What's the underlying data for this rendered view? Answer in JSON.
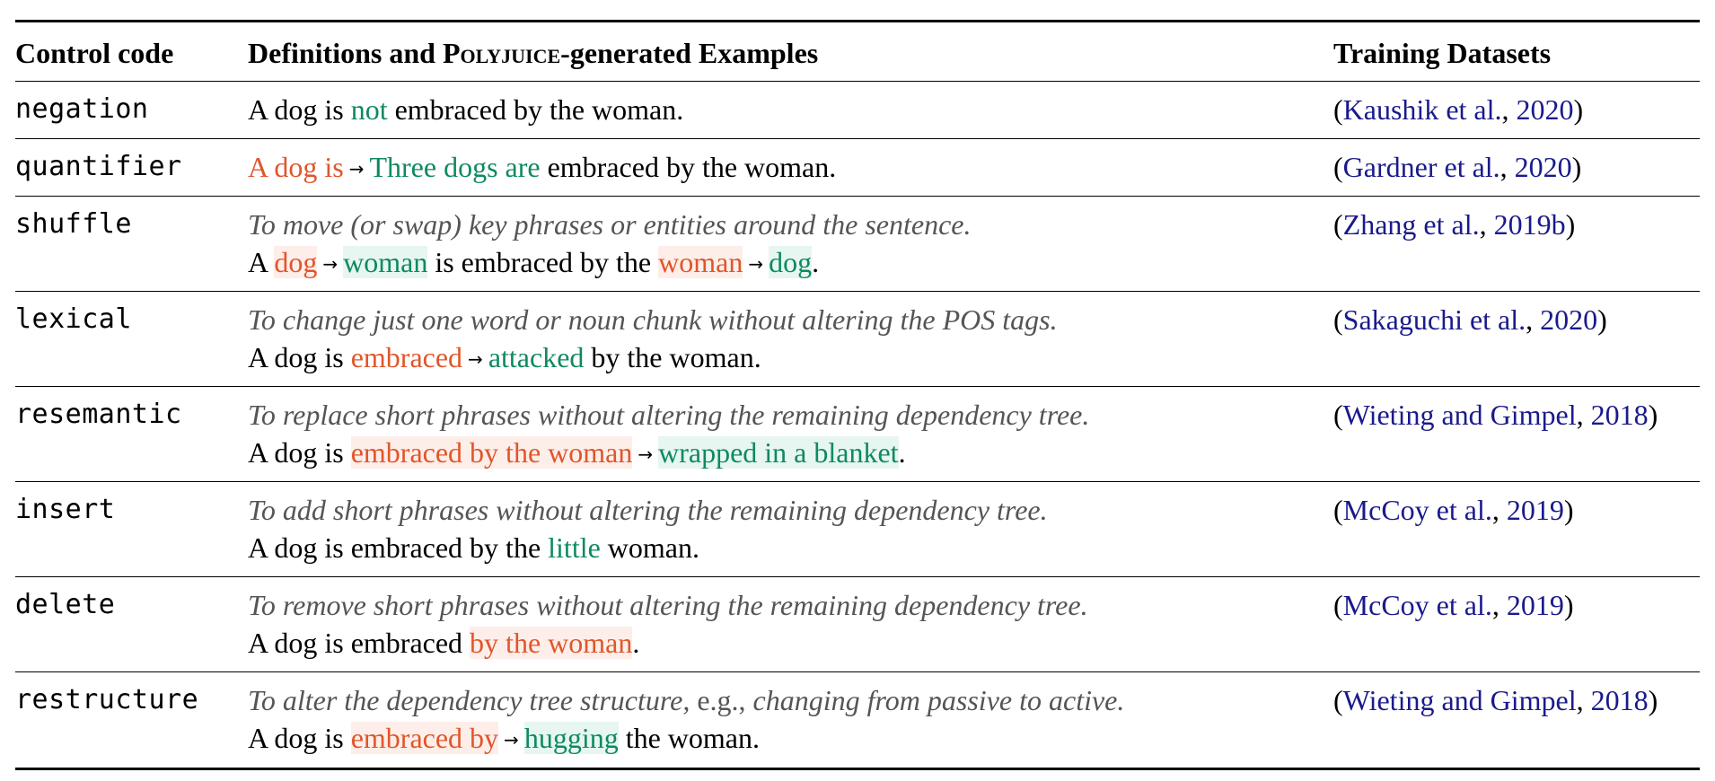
{
  "header": {
    "col1": "Control code",
    "col2_pre": "Definitions and ",
    "col2_brand": "Polyjuice",
    "col2_post": "-generated Examples",
    "col3": "Training Datasets"
  },
  "colors": {
    "deleted": "#e0562a",
    "inserted": "#0e8a5f",
    "definition": "#555555",
    "citation_link": "#1a1a8c"
  },
  "rows": [
    {
      "code": "negation",
      "example": {
        "a": "A dog is ",
        "ins": "not",
        "b": " embraced by the woman."
      },
      "cite": {
        "author": "Kaushik et al.",
        "year": "2020"
      }
    },
    {
      "code": "quantifier",
      "example": {
        "del": "A dog is",
        "ins": "Three dogs are",
        "b": " embraced by the woman."
      },
      "cite": {
        "author": "Gardner et al.",
        "year": "2020"
      }
    },
    {
      "code": "shuffle",
      "definition": "To move (or swap) key phrases or entities around the sentence.",
      "example": {
        "a": "A ",
        "del1": "dog",
        "ins1": "woman",
        "b": " is embraced by the ",
        "del2": "woman",
        "ins2": "dog",
        "c": "."
      },
      "cite": {
        "author": "Zhang et al.",
        "year": "2019b"
      }
    },
    {
      "code": "lexical",
      "definition": "To change just one word or noun chunk without altering the POS tags.",
      "example": {
        "a": "A dog is ",
        "del": "embraced",
        "ins": "attacked",
        "b": " by the woman."
      },
      "cite": {
        "author": "Sakaguchi et al.",
        "year": "2020"
      }
    },
    {
      "code": "resemantic",
      "definition": "To replace short phrases without altering the remaining dependency tree.",
      "example": {
        "a": "A dog is ",
        "del": "embraced by the woman",
        "ins": "wrapped in a blanket",
        "b": "."
      },
      "cite": {
        "author": "Wieting and Gimpel",
        "year": "2018"
      }
    },
    {
      "code": "insert",
      "definition": "To add short phrases without altering the remaining dependency tree.",
      "example": {
        "a": "A dog is embraced by the ",
        "ins": "little",
        "b": " woman."
      },
      "cite": {
        "author": "McCoy et al.",
        "year": "2019"
      }
    },
    {
      "code": "delete",
      "definition": "To remove short phrases without altering the remaining dependency tree.",
      "example": {
        "a": "A dog is embraced ",
        "del": "by the woman",
        "b": "."
      },
      "cite": {
        "author": "McCoy et al.",
        "year": "2019"
      }
    },
    {
      "code": "restructure",
      "definition_a": "To alter the dependency tree structure, ",
      "definition_eg": "e.g.,",
      "definition_b": " changing from passive to active.",
      "example": {
        "a": "A dog is ",
        "del": "embraced by",
        "ins": "hugging",
        "b": " the woman."
      },
      "cite": {
        "author": "Wieting and Gimpel",
        "year": "2018"
      }
    }
  ],
  "arrow_glyph": "→",
  "cite_parts": {
    "open": "(",
    "sep": ", ",
    "close": ")"
  }
}
